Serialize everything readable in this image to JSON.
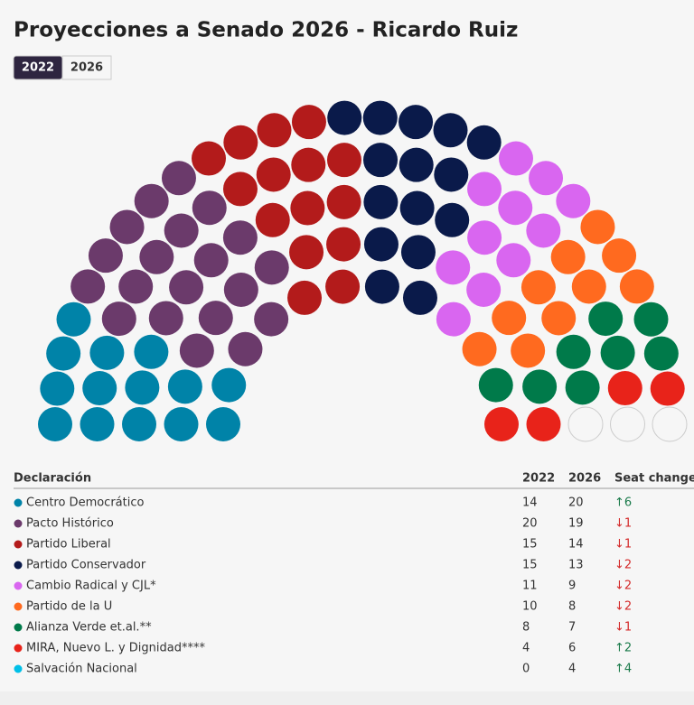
{
  "title": "Proyecciones a Senado 2026 - Ricardo Ruiz",
  "tabs": [
    "2022",
    "2026"
  ],
  "active_tab": 0,
  "hemicycle": {
    "vacant_seats": 3
  },
  "table": {
    "headers": [
      "Declaración",
      "2022",
      "2026",
      "Seat change"
    ],
    "rows": [
      {
        "party": "Centro Democrático",
        "color": "#0083a8",
        "seats": [
          14,
          20
        ],
        "change": "↑6"
      },
      {
        "party": "Pacto Histórico",
        "color": "#6b3a6b",
        "seats": [
          20,
          19
        ],
        "change": "↓1"
      },
      {
        "party": "Partido Liberal",
        "color": "#b31b1b",
        "seats": [
          15,
          14
        ],
        "change": "↓1"
      },
      {
        "party": "Partido Conservador",
        "color": "#0a1a4a",
        "seats": [
          15,
          13
        ],
        "change": "↓2"
      },
      {
        "party": "Cambio Radical y CJL*",
        "color": "#d966f0",
        "seats": [
          11,
          9
        ],
        "change": "↓2"
      },
      {
        "party": "Partido de la U",
        "color": "#ff6a1f",
        "seats": [
          10,
          8
        ],
        "change": "↓2"
      },
      {
        "party": "Alianza Verde et.al.**",
        "color": "#007a4a",
        "seats": [
          8,
          7
        ],
        "change": "↓1"
      },
      {
        "party": "MIRA, Nuevo L. y Dignidad****",
        "color": "#e8231a",
        "seats": [
          4,
          6
        ],
        "change": "↑2"
      },
      {
        "party": "Salvación Nacional",
        "color": "#00c0e8",
        "seats": [
          0,
          4
        ],
        "change": "↑4"
      }
    ]
  }
}
